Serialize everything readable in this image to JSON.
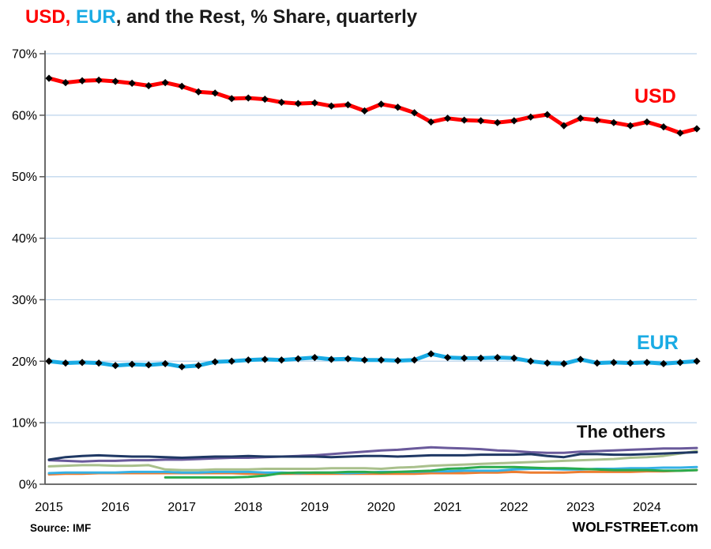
{
  "page": {
    "title_parts": [
      {
        "text": "USD,",
        "color": "#FF0000"
      },
      {
        "text": " EUR",
        "color": "#19ABE4"
      },
      {
        "text": ", and the Rest, % Share, quarterly",
        "color": "#1A1A1A"
      }
    ],
    "source_note": "Source: IMF",
    "branding": "WOLFSTREET.com"
  },
  "chart_data": {
    "type": "line",
    "title": "USD, EUR, and the Rest, % Share, quarterly",
    "frequency": "quarterly",
    "x_start": "2015-Q1",
    "x_end": "2024-Q4",
    "points_per_series": 40,
    "x_year_ticks": [
      "2015",
      "2016",
      "2017",
      "2018",
      "2019",
      "2020",
      "2021",
      "2022",
      "2023",
      "2024"
    ],
    "y_tick_labels": [
      "0%",
      "10%",
      "20%",
      "30%",
      "40%",
      "50%",
      "60%",
      "70%"
    ],
    "y_ticks": [
      0,
      10,
      20,
      30,
      40,
      50,
      60,
      70
    ],
    "ylim": [
      0,
      70
    ],
    "grid": "horizontal gridlines on",
    "grid_color": "#BCD4EC",
    "axis_color": "#595959",
    "legend_position": "inline labels at right of lines",
    "annotations": [
      {
        "text": "USD",
        "color": "#FF0000"
      },
      {
        "text": "EUR",
        "color": "#19ABE4"
      },
      {
        "text": "The others",
        "color": "#111111"
      }
    ],
    "series": [
      {
        "name": "USD",
        "color": "#FF0000",
        "line_width": 5,
        "marker": "black-diamond",
        "values": [
          66.0,
          65.3,
          65.6,
          65.7,
          65.5,
          65.2,
          64.8,
          65.3,
          64.7,
          63.8,
          63.6,
          62.7,
          62.8,
          62.6,
          62.1,
          61.9,
          62.0,
          61.5,
          61.7,
          60.7,
          61.8,
          61.3,
          60.4,
          58.9,
          59.5,
          59.2,
          59.1,
          58.8,
          59.1,
          59.7,
          60.1,
          58.3,
          59.5,
          59.2,
          58.8,
          58.3,
          58.9,
          58.1,
          57.1,
          57.8
        ]
      },
      {
        "name": "EUR",
        "color": "#19ABE4",
        "line_width": 5,
        "marker": "black-diamond",
        "values": [
          20.0,
          19.7,
          19.8,
          19.7,
          19.3,
          19.5,
          19.4,
          19.6,
          19.1,
          19.3,
          19.9,
          20.0,
          20.2,
          20.3,
          20.2,
          20.4,
          20.6,
          20.3,
          20.4,
          20.2,
          20.2,
          20.1,
          20.2,
          21.2,
          20.6,
          20.5,
          20.5,
          20.6,
          20.5,
          20.0,
          19.7,
          19.6,
          20.3,
          19.7,
          19.8,
          19.7,
          19.8,
          19.6,
          19.8,
          20.0
        ]
      }
    ],
    "others_series": [
      {
        "name": "other-orange",
        "color": "#ED7D31",
        "line_width": 3,
        "values": [
          1.6,
          1.7,
          1.7,
          1.8,
          1.8,
          1.8,
          1.8,
          1.8,
          1.8,
          1.8,
          1.8,
          1.8,
          1.7,
          1.7,
          1.7,
          1.7,
          1.7,
          1.7,
          1.7,
          1.7,
          1.7,
          1.7,
          1.7,
          1.8,
          1.8,
          1.8,
          1.9,
          1.9,
          2.0,
          1.9,
          1.9,
          1.9,
          2.0,
          2.0,
          2.0,
          2.0,
          2.1,
          2.1,
          2.2,
          2.3
        ]
      },
      {
        "name": "other-sky-blue",
        "color": "#35B1E6",
        "line_width": 3,
        "values": [
          1.8,
          1.9,
          1.9,
          1.9,
          1.9,
          2.0,
          2.0,
          2.0,
          1.9,
          1.9,
          2.0,
          2.0,
          2.0,
          1.9,
          1.9,
          1.8,
          1.9,
          1.9,
          1.8,
          1.9,
          2.0,
          2.0,
          2.0,
          2.1,
          2.1,
          2.2,
          2.2,
          2.2,
          2.4,
          2.5,
          2.5,
          2.4,
          2.4,
          2.5,
          2.5,
          2.6,
          2.6,
          2.7,
          2.7,
          2.8
        ]
      },
      {
        "name": "other-green",
        "color": "#2BAB4D",
        "line_width": 3,
        "values": [
          null,
          null,
          null,
          null,
          null,
          null,
          null,
          1.1,
          1.1,
          1.1,
          1.1,
          1.1,
          1.2,
          1.4,
          1.8,
          1.9,
          1.9,
          1.9,
          2.0,
          2.0,
          1.9,
          2.0,
          2.1,
          2.2,
          2.5,
          2.6,
          2.8,
          2.8,
          2.8,
          2.7,
          2.6,
          2.6,
          2.5,
          2.4,
          2.3,
          2.3,
          2.3,
          2.2,
          2.2,
          2.3
        ]
      },
      {
        "name": "other-sage-green",
        "color": "#A9C08C",
        "line_width": 3,
        "values": [
          2.9,
          3.0,
          3.1,
          3.1,
          3.0,
          3.0,
          3.1,
          2.4,
          2.3,
          2.3,
          2.4,
          2.4,
          2.4,
          2.5,
          2.5,
          2.5,
          2.5,
          2.6,
          2.6,
          2.6,
          2.5,
          2.7,
          2.8,
          3.0,
          3.1,
          3.2,
          3.3,
          3.4,
          3.5,
          3.6,
          3.7,
          3.8,
          3.9,
          4.0,
          4.1,
          4.3,
          4.4,
          4.6,
          5.0,
          5.4
        ]
      },
      {
        "name": "other-purple",
        "color": "#6A5A9B",
        "line_width": 3,
        "values": [
          3.9,
          3.8,
          3.7,
          3.8,
          3.8,
          3.9,
          3.9,
          4.0,
          4.0,
          4.1,
          4.2,
          4.3,
          4.3,
          4.4,
          4.5,
          4.6,
          4.7,
          4.9,
          5.1,
          5.3,
          5.5,
          5.6,
          5.8,
          6.0,
          5.9,
          5.8,
          5.7,
          5.5,
          5.4,
          5.2,
          5.1,
          5.1,
          5.3,
          5.4,
          5.5,
          5.6,
          5.7,
          5.8,
          5.8,
          5.9
        ]
      },
      {
        "name": "other-navy",
        "color": "#1F3864",
        "line_width": 3,
        "values": [
          4.0,
          4.4,
          4.6,
          4.7,
          4.6,
          4.5,
          4.5,
          4.4,
          4.3,
          4.4,
          4.5,
          4.5,
          4.6,
          4.5,
          4.5,
          4.5,
          4.5,
          4.4,
          4.5,
          4.6,
          4.6,
          4.5,
          4.6,
          4.7,
          4.7,
          4.7,
          4.8,
          4.8,
          4.8,
          4.9,
          4.6,
          4.4,
          4.9,
          4.9,
          4.8,
          4.8,
          4.9,
          5.0,
          5.1,
          5.2
        ]
      }
    ]
  }
}
